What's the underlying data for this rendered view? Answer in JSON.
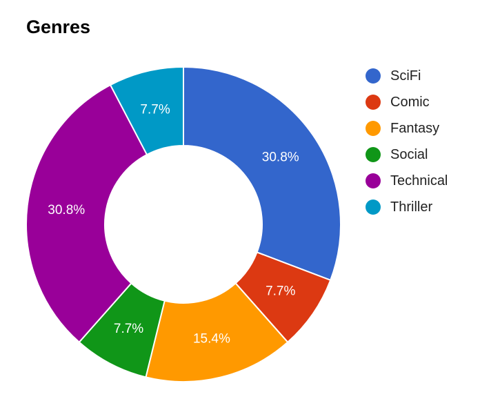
{
  "chart_data": {
    "type": "pie",
    "variant": "donut",
    "title": "Genres",
    "legend_position": "right",
    "series": [
      {
        "name": "SciFi",
        "value": 30.8,
        "label": "30.8%",
        "color": "#3366cc"
      },
      {
        "name": "Comic",
        "value": 7.7,
        "label": "7.7%",
        "color": "#dc3912"
      },
      {
        "name": "Fantasy",
        "value": 15.4,
        "label": "15.4%",
        "color": "#ff9900"
      },
      {
        "name": "Social",
        "value": 7.7,
        "label": "7.7%",
        "color": "#109618"
      },
      {
        "name": "Technical",
        "value": 30.8,
        "label": "30.8%",
        "color": "#990099"
      },
      {
        "name": "Thriller",
        "value": 7.7,
        "label": "7.7%",
        "color": "#0099c6"
      }
    ]
  }
}
